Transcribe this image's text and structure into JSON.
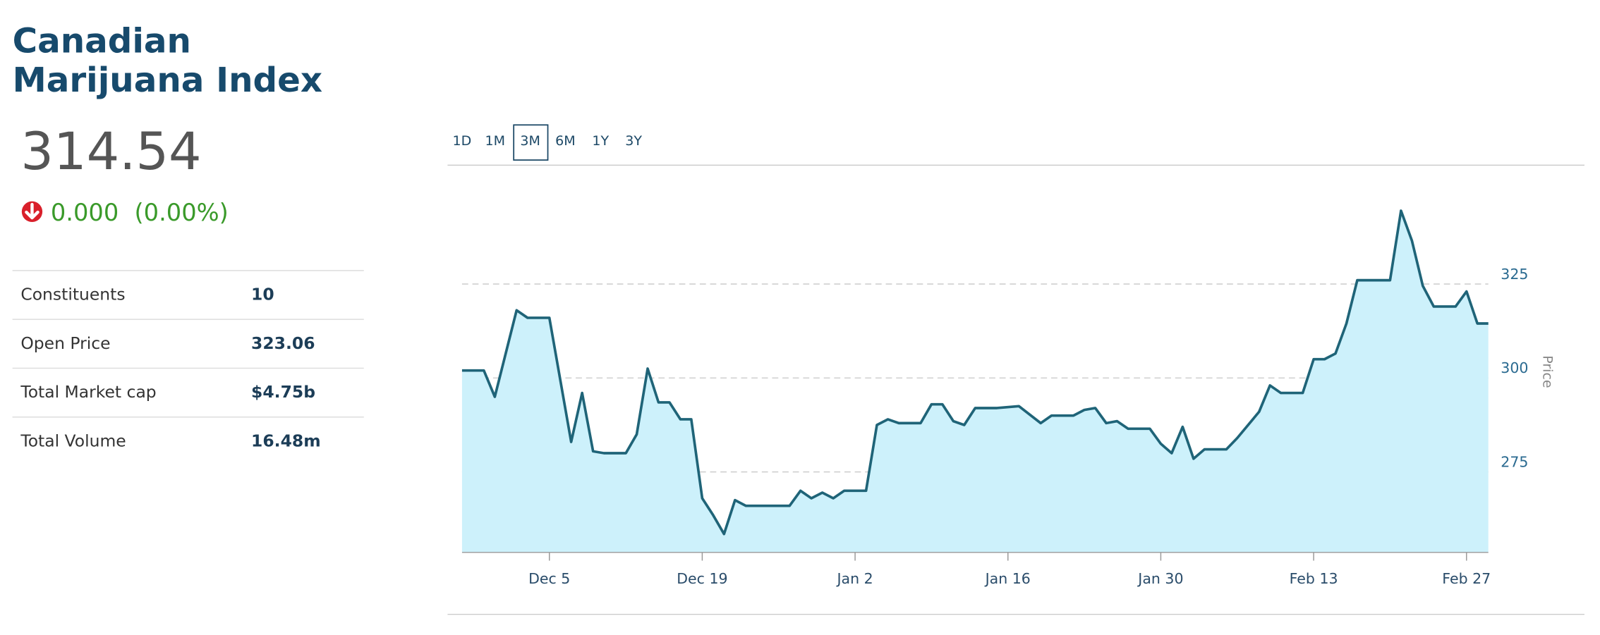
{
  "header": {
    "title_lines": [
      "Canadian",
      "Marijuana Index"
    ]
  },
  "quote": {
    "price": "314.54",
    "change": "0.000",
    "change_percent": "(0.00%)"
  },
  "stats": [
    {
      "label": "Constituents",
      "value": "10"
    },
    {
      "label": "Open Price",
      "value": "323.06"
    },
    {
      "label": "Total Market cap",
      "value": "$4.75b"
    },
    {
      "label": "Total Volume",
      "value": "16.48m"
    }
  ],
  "range_buttons": {
    "options": [
      "1D",
      "1M",
      "3M",
      "6M",
      "1Y",
      "3Y"
    ],
    "selected": "3M"
  },
  "chart_data": {
    "type": "line",
    "x": [
      "Nov 27",
      "Nov 29",
      "Nov 30",
      "Dec 2",
      "Dec 3",
      "Dec 5",
      "Dec 7",
      "Dec 8",
      "Dec 9",
      "Dec 10",
      "Dec 12",
      "Dec 13",
      "Dec 14",
      "Dec 15",
      "Dec 16",
      "Dec 17",
      "Dec 18",
      "Dec 19",
      "Dec 20",
      "Dec 21",
      "Dec 22",
      "Dec 23",
      "Dec 27",
      "Dec 28",
      "Dec 29",
      "Dec 30",
      "Dec 31",
      "Jan 1",
      "Jan 3",
      "Jan 4",
      "Jan 5",
      "Jan 6",
      "Jan 8",
      "Jan 9",
      "Jan 10",
      "Jan 11",
      "Jan 12",
      "Jan 13",
      "Jan 15",
      "Jan 17",
      "Jan 19",
      "Jan 20",
      "Jan 22",
      "Jan 23",
      "Jan 24",
      "Jan 25",
      "Jan 26",
      "Jan 27",
      "Jan 29",
      "Jan 30",
      "Jan 31",
      "Feb 1",
      "Feb 2",
      "Feb 3",
      "Feb 5",
      "Feb 6",
      "Feb 8",
      "Feb 9",
      "Feb 10",
      "Feb 12",
      "Feb 13",
      "Feb 14",
      "Feb 15",
      "Feb 16",
      "Feb 17",
      "Feb 20",
      "Feb 21",
      "Feb 22",
      "Feb 23",
      "Feb 24",
      "Feb 26",
      "Feb 27",
      "Feb 28",
      "Mar 1"
    ],
    "values": [
      302,
      302,
      295,
      318,
      316,
      316,
      283,
      296,
      280.5,
      280,
      280,
      285,
      302.5,
      293.5,
      293.5,
      289,
      289,
      268,
      263.5,
      258.5,
      267.5,
      266,
      266,
      270,
      268,
      269.5,
      268,
      270,
      270,
      287.5,
      289,
      288,
      288,
      293,
      293,
      288.5,
      287.5,
      292,
      292,
      292.5,
      288,
      290,
      290,
      291.5,
      292,
      288,
      288.5,
      286.5,
      286.5,
      282.5,
      280,
      287,
      278.5,
      281,
      281,
      284,
      291,
      298,
      296,
      296,
      305,
      305,
      306.5,
      314.5,
      326,
      326,
      344.5,
      336.5,
      324.5,
      319,
      319,
      323,
      314.5,
      314.5
    ],
    "xlim": [
      "Nov 27",
      "Mar 1"
    ],
    "xticks": [
      "Dec 5",
      "Dec 19",
      "Jan 2",
      "Jan 16",
      "Jan 30",
      "Feb 13",
      "Feb 27"
    ],
    "ylim": [
      253.6,
      356.6
    ],
    "yticks": [
      275,
      300,
      325
    ],
    "y_label": "Price",
    "color": "#1f6478",
    "fill_color": "#cdf1fb",
    "grid": true
  }
}
